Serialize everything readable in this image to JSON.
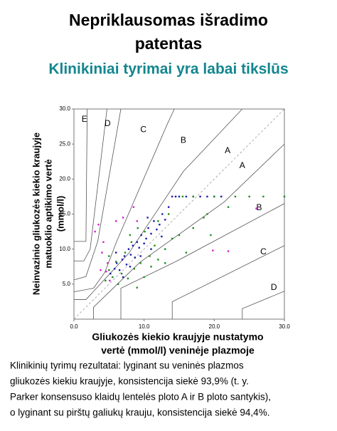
{
  "chart_data": {
    "type": "scatter",
    "title": [
      "Nepriklausomas išradimo",
      "patentas"
    ],
    "subtitle": "Klinikiniai tyrimai yra labai tikslūs",
    "x_label": [
      "Gliukozės kiekio kraujyje nustatymo",
      "vertė (mmol/l) veninėje plazmoje"
    ],
    "y_label": [
      "Neinvazinio gliukozės kiekio kraujyje",
      "matuoklio aptikimo vertė",
      "(mmol/l)"
    ],
    "xlim": [
      0,
      30
    ],
    "ylim": [
      0,
      30
    ],
    "xticks": [
      {
        "value": 0,
        "label": "0.0"
      },
      {
        "value": 10,
        "label": "10.0"
      },
      {
        "value": 20,
        "label": "20.0"
      },
      {
        "value": 30,
        "label": "30.0"
      }
    ],
    "yticks": [
      {
        "value": 5,
        "label": "5.0"
      },
      {
        "value": 10,
        "label": "10.0"
      },
      {
        "value": 15,
        "label": "15.0"
      },
      {
        "value": 20,
        "label": "20.0"
      },
      {
        "value": 25,
        "label": "25.0"
      },
      {
        "value": 30,
        "label": "30.0"
      }
    ],
    "zone_labels": [
      "E",
      "D",
      "C",
      "B",
      "A",
      "A",
      "B",
      "C",
      "D"
    ],
    "series": [
      {
        "color": "#1b1ba8",
        "x": [
          5.2,
          5.8,
          6.1,
          6.5,
          6.9,
          7.2,
          7.5,
          7.8,
          8.1,
          8.4,
          8.7,
          9.0,
          9.3,
          9.6,
          10.0,
          10.3,
          10.6,
          11.0,
          11.4,
          11.8,
          12.2,
          12.6,
          13.0,
          13.5,
          14.0,
          14.5,
          15.0,
          16.0,
          17.0,
          18.0,
          19.0,
          20.0,
          21.0,
          7.0,
          8.0,
          9.5,
          11.0,
          12.5,
          6.0,
          10.5
        ],
        "values": [
          6.5,
          7.2,
          8.0,
          7.0,
          8.5,
          9.0,
          7.8,
          10.0,
          9.2,
          10.5,
          8.8,
          11.0,
          10.2,
          12.0,
          10.8,
          11.5,
          13.0,
          12.2,
          14.0,
          12.8,
          13.5,
          15.0,
          14.2,
          16.0,
          17.5,
          17.5,
          17.5,
          17.5,
          17.5,
          17.5,
          17.5,
          17.5,
          17.5,
          6.0,
          7.5,
          9.0,
          10.0,
          11.8,
          9.5,
          14.5
        ]
      },
      {
        "color": "#1c8c24",
        "x": [
          4.5,
          5.0,
          5.5,
          6.0,
          6.3,
          6.8,
          7.3,
          7.7,
          8.2,
          8.6,
          9.1,
          9.5,
          10.1,
          10.8,
          11.5,
          12.0,
          13.0,
          14.0,
          15.0,
          16.0,
          17.0,
          18.5,
          19.5,
          9.0,
          10.0,
          11.0,
          12.0,
          13.5,
          5.0,
          8.0,
          17.0,
          20.0,
          23.0,
          25.0,
          27.0,
          30.0,
          22.0,
          19.0,
          15.5,
          13.0
        ],
        "values": [
          5.5,
          7.0,
          6.0,
          8.2,
          5.0,
          6.5,
          9.5,
          5.8,
          11.0,
          7.2,
          13.0,
          8.0,
          12.5,
          9.0,
          10.5,
          14.0,
          10.0,
          11.5,
          12.0,
          9.5,
          13.0,
          14.5,
          12.0,
          4.5,
          6.0,
          7.5,
          8.5,
          15.0,
          9.0,
          12.0,
          17.5,
          17.5,
          17.5,
          17.5,
          17.5,
          17.5,
          16.0,
          15.0,
          17.5,
          8.0
        ]
      },
      {
        "color": "#d21fd2",
        "x": [
          3.0,
          3.5,
          4.0,
          4.2,
          4.6,
          5.1,
          6.0,
          7.0,
          3.8,
          4.8,
          8.5,
          9.0,
          19.8,
          22.0,
          26.0
        ],
        "values": [
          12.5,
          13.5,
          9.5,
          11.0,
          6.8,
          5.5,
          14.0,
          14.5,
          7.0,
          8.0,
          16.0,
          14.0,
          9.8,
          9.7,
          15.8
        ]
      }
    ],
    "caption": [
      "Klinikinių tyrimų rezultatai: lyginant su veninės plazmos",
      "gliukozės kiekiu kraujyje, konsistencija siekė 93,9% (t. y.",
      "Parker konsensuso klaidų lentelės ploto A ir B ploto santykis),",
      "o lyginant su pirštų galiukų krauju, konsistencija siekė 94,4%."
    ]
  }
}
